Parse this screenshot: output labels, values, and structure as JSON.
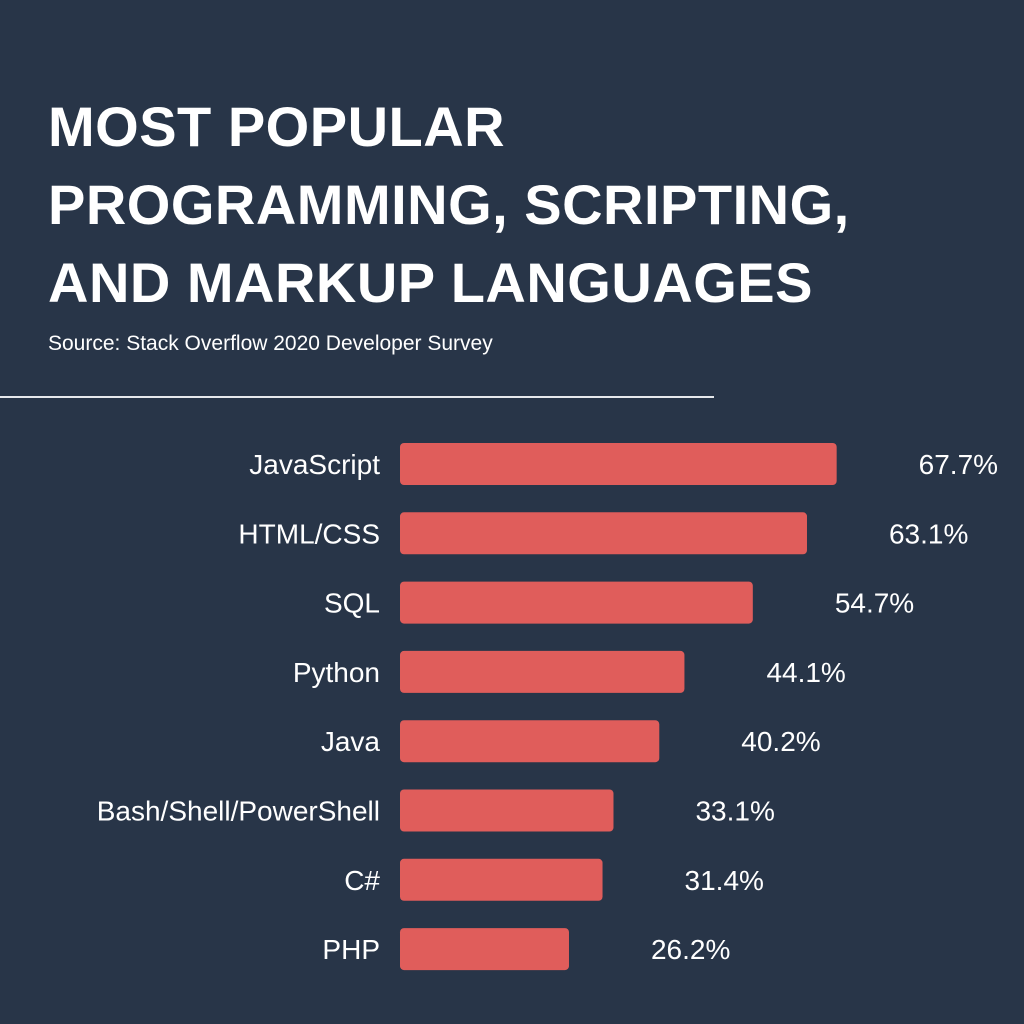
{
  "title_lines": [
    "MOST POPULAR",
    "PROGRAMMING, SCRIPTING,",
    "AND MARKUP LANGUAGES"
  ],
  "source": "Source: Stack Overflow 2020 Developer Survey",
  "colors": {
    "background": "#283548",
    "bar": "#e05d5b",
    "text": "#ffffff",
    "divider": "#e6e8ec"
  },
  "chart_data": {
    "type": "bar",
    "orientation": "horizontal",
    "categories": [
      "JavaScript",
      "HTML/CSS",
      "SQL",
      "Python",
      "Java",
      "Bash/Shell/PowerShell",
      "C#",
      "PHP"
    ],
    "values": [
      67.7,
      63.1,
      54.7,
      44.1,
      40.2,
      33.1,
      31.4,
      26.2
    ],
    "value_labels": [
      "67.7%",
      "63.1%",
      "54.7%",
      "44.1%",
      "40.2%",
      "33.1%",
      "31.4%",
      "26.2%"
    ],
    "unit": "%",
    "grid": false,
    "legend": "none"
  }
}
